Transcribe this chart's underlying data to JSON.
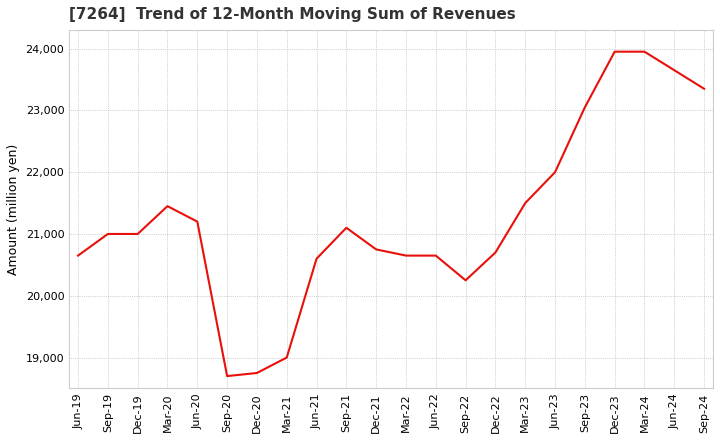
{
  "title": "[7264]  Trend of 12-Month Moving Sum of Revenues",
  "ylabel": "Amount (million yen)",
  "line_color": "#e8100a",
  "background_color": "#ffffff",
  "plot_bg_color": "#ffffff",
  "grid_color": "#aaaaaa",
  "x_labels": [
    "Jun-19",
    "Sep-19",
    "Dec-19",
    "Mar-20",
    "Jun-20",
    "Sep-20",
    "Dec-20",
    "Mar-21",
    "Jun-21",
    "Sep-21",
    "Dec-21",
    "Mar-22",
    "Jun-22",
    "Sep-22",
    "Dec-22",
    "Mar-23",
    "Jun-23",
    "Sep-23",
    "Dec-23",
    "Mar-24",
    "Jun-24",
    "Sep-24"
  ],
  "values": [
    20650,
    21000,
    21000,
    21450,
    21200,
    18700,
    18750,
    19000,
    20600,
    21100,
    20750,
    20650,
    20650,
    20250,
    20700,
    21500,
    22000,
    23050,
    23950,
    23950,
    23650,
    23350
  ],
  "ylim": [
    18500,
    24300
  ],
  "yticks": [
    19000,
    20000,
    21000,
    22000,
    23000,
    24000
  ],
  "title_fontsize": 11,
  "label_fontsize": 9,
  "tick_fontsize": 8
}
